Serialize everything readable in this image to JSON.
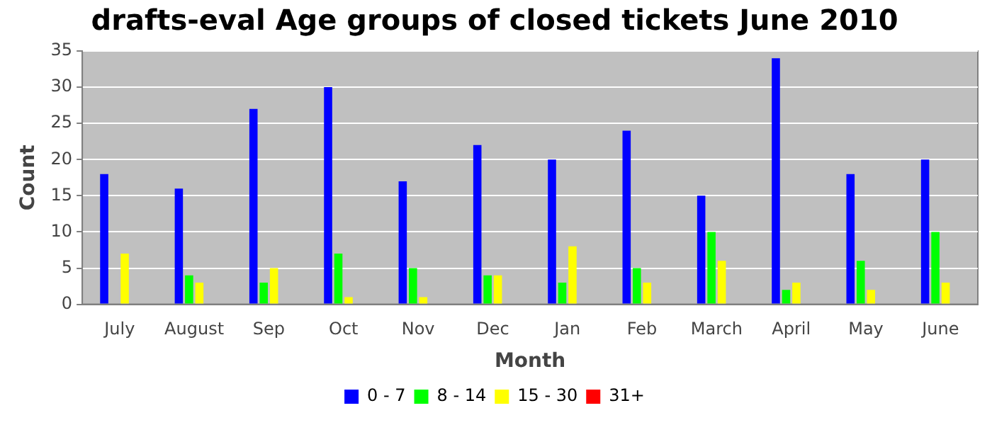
{
  "chart_data": {
    "type": "bar",
    "title": "drafts-eval Age groups of closed tickets June 2010",
    "xlabel": "Month",
    "ylabel": "Count",
    "categories": [
      "July",
      "August",
      "Sep",
      "Oct",
      "Nov",
      "Dec",
      "Jan",
      "Feb",
      "March",
      "April",
      "May",
      "June"
    ],
    "series": [
      {
        "name": "0 - 7",
        "color": "#0000ff",
        "values": [
          18,
          16,
          27,
          30,
          17,
          22,
          20,
          24,
          15,
          34,
          18,
          20
        ]
      },
      {
        "name": "8 - 14",
        "color": "#00ff00",
        "values": [
          0,
          4,
          3,
          7,
          5,
          4,
          3,
          5,
          10,
          2,
          6,
          10
        ]
      },
      {
        "name": "15 - 30",
        "color": "#ffff00",
        "values": [
          7,
          3,
          5,
          1,
          1,
          4,
          8,
          3,
          6,
          3,
          2,
          3
        ]
      },
      {
        "name": "31+",
        "color": "#ff0000",
        "values": [
          0,
          0,
          0,
          0,
          0,
          0,
          0,
          0,
          0,
          0,
          0,
          0
        ]
      }
    ],
    "ylim": [
      0,
      35
    ],
    "yticks": [
      0,
      5,
      10,
      15,
      20,
      25,
      30,
      35
    ],
    "grid": "y",
    "legend": "bottom"
  }
}
